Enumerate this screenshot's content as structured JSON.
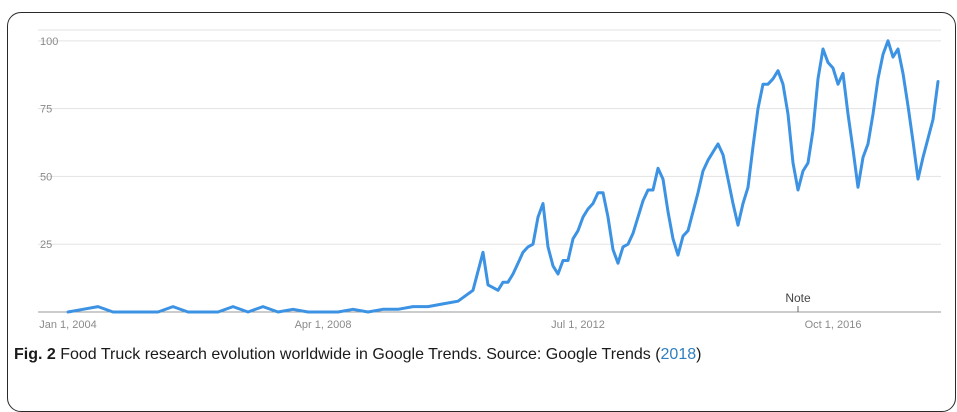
{
  "caption": {
    "fig_label": "Fig. 2",
    "text": " Food Truck research evolution worldwide in Google Trends. Source: Google Trends (",
    "year_link": "2018",
    "close": ")"
  },
  "colors": {
    "line": "#3c92e3",
    "grid": "#e3e3e3",
    "axis": "#9a9a9a"
  },
  "chart_data": {
    "type": "line",
    "title": "",
    "xlabel": "",
    "ylabel": "",
    "ylim": [
      0,
      100
    ],
    "y_ticks": [
      "25",
      "50",
      "75",
      "100"
    ],
    "x_tick_labels": [
      {
        "label": "Jan 1, 2004",
        "at": "2004-01"
      },
      {
        "label": "Apr 1, 2008",
        "at": "2008-04"
      },
      {
        "label": "Jul 1, 2012",
        "at": "2012-07"
      },
      {
        "label": "Oct 1, 2016",
        "at": "2016-10"
      }
    ],
    "annotations": [
      {
        "text": "Note",
        "at": "2016-03"
      }
    ],
    "x_range": [
      "2004-01",
      "2018-03"
    ],
    "grid": true,
    "series": [
      {
        "name": "",
        "points": [
          [
            "2004-01",
            0
          ],
          [
            "2004-04",
            1
          ],
          [
            "2004-07",
            2
          ],
          [
            "2004-10",
            0
          ],
          [
            "2005-01",
            0
          ],
          [
            "2005-04",
            0
          ],
          [
            "2005-07",
            0
          ],
          [
            "2005-10",
            2
          ],
          [
            "2006-01",
            0
          ],
          [
            "2006-04",
            0
          ],
          [
            "2006-07",
            0
          ],
          [
            "2006-10",
            2
          ],
          [
            "2007-01",
            0
          ],
          [
            "2007-04",
            2
          ],
          [
            "2007-07",
            0
          ],
          [
            "2007-10",
            1
          ],
          [
            "2008-01",
            0
          ],
          [
            "2008-04",
            0
          ],
          [
            "2008-07",
            0
          ],
          [
            "2008-10",
            1
          ],
          [
            "2009-01",
            0
          ],
          [
            "2009-04",
            1
          ],
          [
            "2009-07",
            1
          ],
          [
            "2009-10",
            2
          ],
          [
            "2010-01",
            2
          ],
          [
            "2010-04",
            3
          ],
          [
            "2010-07",
            4
          ],
          [
            "2010-10",
            8
          ],
          [
            "2010-12",
            22
          ],
          [
            "2011-01",
            10
          ],
          [
            "2011-02",
            9
          ],
          [
            "2011-03",
            8
          ],
          [
            "2011-04",
            11
          ],
          [
            "2011-05",
            11
          ],
          [
            "2011-06",
            14
          ],
          [
            "2011-07",
            18
          ],
          [
            "2011-08",
            22
          ],
          [
            "2011-09",
            24
          ],
          [
            "2011-10",
            25
          ],
          [
            "2011-11",
            35
          ],
          [
            "2011-12",
            40
          ],
          [
            "2012-01",
            24
          ],
          [
            "2012-02",
            17
          ],
          [
            "2012-03",
            14
          ],
          [
            "2012-04",
            19
          ],
          [
            "2012-05",
            19
          ],
          [
            "2012-06",
            27
          ],
          [
            "2012-07",
            30
          ],
          [
            "2012-08",
            35
          ],
          [
            "2012-09",
            38
          ],
          [
            "2012-10",
            40
          ],
          [
            "2012-11",
            44
          ],
          [
            "2012-12",
            44
          ],
          [
            "2013-01",
            35
          ],
          [
            "2013-02",
            23
          ],
          [
            "2013-03",
            18
          ],
          [
            "2013-04",
            24
          ],
          [
            "2013-05",
            25
          ],
          [
            "2013-06",
            29
          ],
          [
            "2013-07",
            35
          ],
          [
            "2013-08",
            41
          ],
          [
            "2013-09",
            45
          ],
          [
            "2013-10",
            45
          ],
          [
            "2013-11",
            53
          ],
          [
            "2013-12",
            49
          ],
          [
            "2014-01",
            37
          ],
          [
            "2014-02",
            27
          ],
          [
            "2014-03",
            21
          ],
          [
            "2014-04",
            28
          ],
          [
            "2014-05",
            30
          ],
          [
            "2014-06",
            37
          ],
          [
            "2014-07",
            44
          ],
          [
            "2014-08",
            52
          ],
          [
            "2014-09",
            56
          ],
          [
            "2014-10",
            59
          ],
          [
            "2014-11",
            62
          ],
          [
            "2014-12",
            58
          ],
          [
            "2015-01",
            49
          ],
          [
            "2015-02",
            40
          ],
          [
            "2015-03",
            32
          ],
          [
            "2015-04",
            40
          ],
          [
            "2015-05",
            46
          ],
          [
            "2015-06",
            61
          ],
          [
            "2015-07",
            75
          ],
          [
            "2015-08",
            84
          ],
          [
            "2015-09",
            84
          ],
          [
            "2015-10",
            86
          ],
          [
            "2015-11",
            89
          ],
          [
            "2015-12",
            84
          ],
          [
            "2016-01",
            73
          ],
          [
            "2016-02",
            55
          ],
          [
            "2016-03",
            45
          ],
          [
            "2016-04",
            52
          ],
          [
            "2016-05",
            55
          ],
          [
            "2016-06",
            67
          ],
          [
            "2016-07",
            86
          ],
          [
            "2016-08",
            97
          ],
          [
            "2016-09",
            92
          ],
          [
            "2016-10",
            90
          ],
          [
            "2016-11",
            84
          ],
          [
            "2016-12",
            88
          ],
          [
            "2017-01",
            73
          ],
          [
            "2017-02",
            60
          ],
          [
            "2017-03",
            46
          ],
          [
            "2017-04",
            57
          ],
          [
            "2017-05",
            62
          ],
          [
            "2017-06",
            73
          ],
          [
            "2017-07",
            86
          ],
          [
            "2017-08",
            95
          ],
          [
            "2017-09",
            100
          ],
          [
            "2017-10",
            94
          ],
          [
            "2017-11",
            97
          ],
          [
            "2017-12",
            88
          ],
          [
            "2018-01",
            76
          ],
          [
            "2018-02",
            63
          ],
          [
            "2018-03",
            49
          ],
          [
            "2018-04",
            57
          ],
          [
            "2018-05",
            64
          ],
          [
            "2018-06",
            71
          ],
          [
            "2018-07",
            85
          ]
        ]
      }
    ]
  }
}
